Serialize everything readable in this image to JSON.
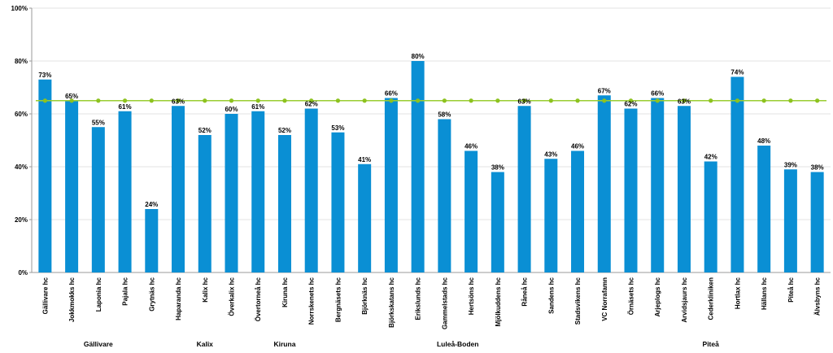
{
  "chart_data": {
    "type": "bar",
    "categories": [
      "Gällivare hc",
      "Jokkmokks hc",
      "Laponia hc",
      "Pajala hc",
      "Grytnäs hc",
      "Haparanda hc",
      "Kalix hc",
      "Överkalix hc",
      "Övertorneå hc",
      "Kiruna hc",
      "Norrskenets hc",
      "Bergnäsets hc",
      "Björknäs hc",
      "Björkskatans hc",
      "Erikslunds hc",
      "Gammelstads hc",
      "Hertsöns hc",
      "Mjölkuddens hc",
      "Råneå hc",
      "Sandens hc",
      "Stadsvikens hc",
      "VC Norrafamn",
      "Örnäsets hc",
      "Arjeplogs hc",
      "Arvidsjaurs hc",
      "Cederkliniken",
      "Hortlax hc",
      "Hällans hc",
      "Piteå hc",
      "Älvsbyns hc"
    ],
    "series": [
      {
        "type": "bar",
        "color": "#0a8fd4",
        "values": [
          73,
          65,
          55,
          61,
          24,
          63,
          52,
          60,
          61,
          52,
          62,
          53,
          41,
          66,
          80,
          58,
          46,
          38,
          63,
          43,
          46,
          67,
          62,
          66,
          63,
          42,
          74,
          48,
          39,
          38
        ],
        "labels": [
          "73%",
          "65%",
          "55%",
          "61%",
          "24%",
          "63%",
          "52%",
          "60%",
          "61%",
          "52%",
          "62%",
          "53%",
          "41%",
          "66%",
          "80%",
          "58%",
          "46%",
          "38%",
          "63%",
          "43%",
          "46%",
          "67%",
          "62%",
          "66%",
          "63%",
          "42%",
          "74%",
          "48%",
          "39%",
          "38%"
        ]
      },
      {
        "type": "line",
        "color": "#9acd32",
        "marker_color": "#8dc21f",
        "values": [
          65,
          65,
          65,
          65,
          65,
          65,
          65,
          65,
          65,
          65,
          65,
          65,
          65,
          65,
          65,
          65,
          65,
          65,
          65,
          65,
          65,
          65,
          65,
          65,
          65,
          65,
          65,
          65,
          65,
          65
        ]
      }
    ],
    "groups": [
      {
        "label": "Gällivare",
        "start": 0,
        "end": 4
      },
      {
        "label": "Kalix",
        "start": 5,
        "end": 7
      },
      {
        "label": "Kiruna",
        "start": 8,
        "end": 10
      },
      {
        "label": "Luleå-Boden",
        "start": 11,
        "end": 20
      },
      {
        "label": "Piteå",
        "start": 21,
        "end": 29
      }
    ],
    "yticks": [
      "0%",
      "20%",
      "40%",
      "60%",
      "80%",
      "100%"
    ],
    "ylim": [
      0,
      100
    ],
    "grid": true,
    "legend": "none"
  }
}
